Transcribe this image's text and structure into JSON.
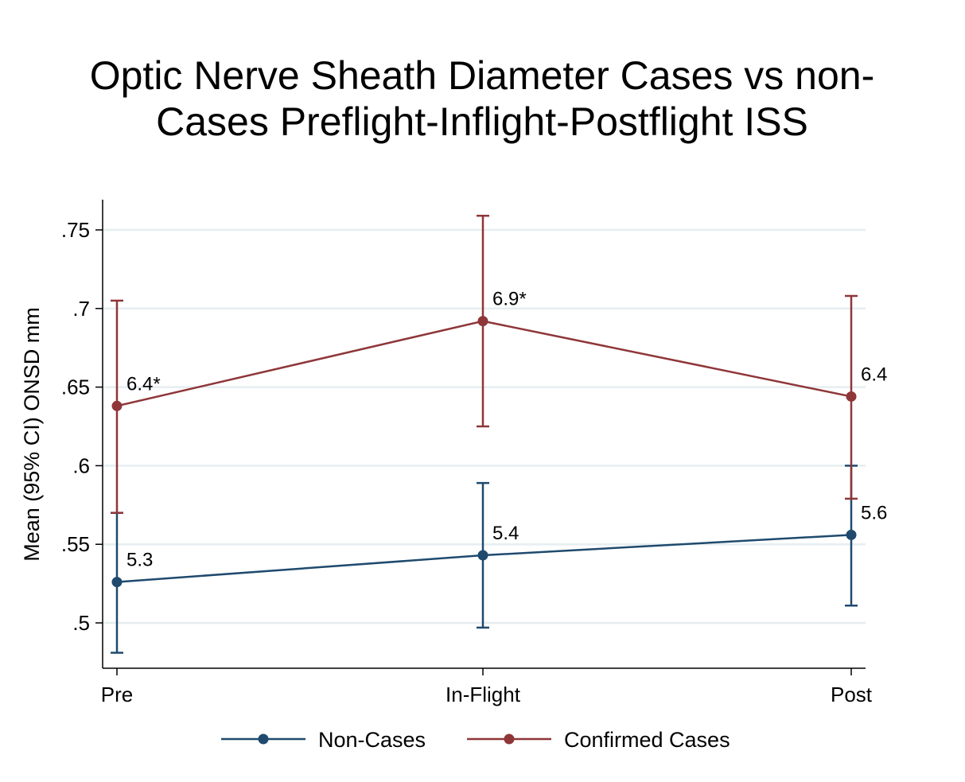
{
  "chart_data": {
    "type": "line",
    "title_lines": [
      "Optic Nerve Sheath Diameter Cases vs non-",
      "Cases Preflight-Inflight-Postflight ISS"
    ],
    "xlabel": "",
    "ylabel": "Mean (95% CI)  ONSD mm",
    "categories": [
      "Pre",
      "In-Flight",
      "Post"
    ],
    "ylim": [
      0.47,
      0.77
    ],
    "yticks": [
      0.5,
      0.55,
      0.6,
      0.65,
      0.7,
      0.75
    ],
    "ytick_labels": [
      ".5",
      ".55",
      ".6",
      ".65",
      ".7",
      ".75"
    ],
    "grid": true,
    "legend_position": "bottom",
    "series": [
      {
        "name": "Non-Cases",
        "color": "#1f4a6e",
        "values": [
          0.526,
          0.543,
          0.556
        ],
        "ci_lower": [
          0.481,
          0.497,
          0.511
        ],
        "ci_upper": [
          0.57,
          0.589,
          0.6
        ],
        "labels": [
          "5.3",
          "5.4",
          "5.6"
        ]
      },
      {
        "name": "Confirmed Cases",
        "color": "#8f3639",
        "values": [
          0.638,
          0.692,
          0.644
        ],
        "ci_lower": [
          0.57,
          0.625,
          0.579
        ],
        "ci_upper": [
          0.705,
          0.759,
          0.708
        ],
        "labels": [
          "6.4*",
          "6.9*",
          "6.4"
        ]
      }
    ]
  }
}
